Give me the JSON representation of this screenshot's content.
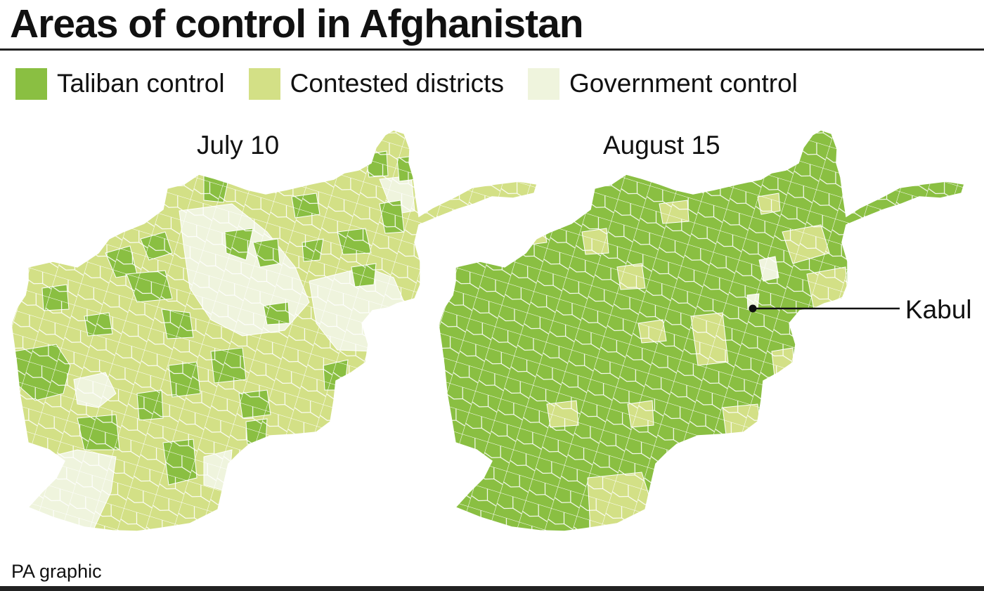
{
  "title": "Areas of control in Afghanistan",
  "legend": [
    {
      "label": "Taliban control",
      "color": "#8abf42"
    },
    {
      "label": "Contested districts",
      "color": "#d3e086"
    },
    {
      "label": "Government control",
      "color": "#eff4dd"
    }
  ],
  "maps": [
    {
      "label": "July 10",
      "base_status": "contested"
    },
    {
      "label": "August 15",
      "base_status": "taliban",
      "marker": "Kabul"
    }
  ],
  "source": "PA graphic"
}
